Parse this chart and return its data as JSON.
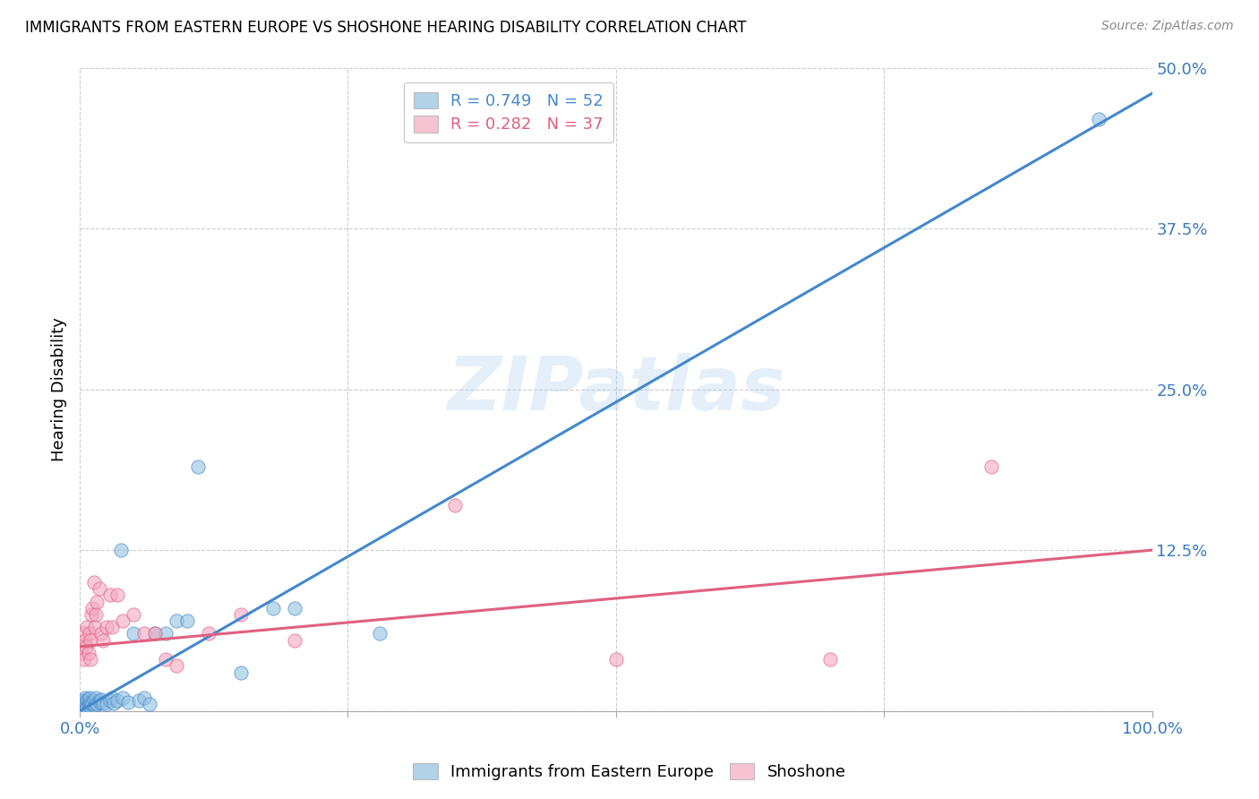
{
  "title": "IMMIGRANTS FROM EASTERN EUROPE VS SHOSHONE HEARING DISABILITY CORRELATION CHART",
  "source": "Source: ZipAtlas.com",
  "ylabel": "Hearing Disability",
  "xlim": [
    0,
    1.0
  ],
  "ylim": [
    0,
    0.5
  ],
  "xtick_positions": [
    0.0,
    0.25,
    0.5,
    0.75,
    1.0
  ],
  "xtick_labels": [
    "0.0%",
    "",
    "",
    "",
    "100.0%"
  ],
  "ytick_positions": [
    0.0,
    0.125,
    0.25,
    0.375,
    0.5
  ],
  "ytick_labels": [
    "",
    "12.5%",
    "25.0%",
    "37.5%",
    "50.0%"
  ],
  "blue_color": "#92c0e0",
  "pink_color": "#f4a8c0",
  "blue_line_color": "#4488cc",
  "pink_line_color": "#e06080",
  "blue_r": 0.749,
  "blue_n": 52,
  "pink_r": 0.282,
  "pink_n": 37,
  "watermark": "ZIPatlas",
  "legend_label_blue": "Immigrants from Eastern Europe",
  "legend_label_pink": "Shoshone",
  "blue_scatter_x": [
    0.001,
    0.002,
    0.002,
    0.003,
    0.003,
    0.004,
    0.004,
    0.005,
    0.005,
    0.006,
    0.006,
    0.007,
    0.007,
    0.008,
    0.008,
    0.009,
    0.009,
    0.01,
    0.01,
    0.011,
    0.012,
    0.013,
    0.014,
    0.015,
    0.015,
    0.016,
    0.018,
    0.019,
    0.02,
    0.022,
    0.025,
    0.028,
    0.03,
    0.032,
    0.035,
    0.038,
    0.04,
    0.045,
    0.05,
    0.055,
    0.06,
    0.065,
    0.07,
    0.08,
    0.09,
    0.1,
    0.11,
    0.15,
    0.18,
    0.2,
    0.28,
    0.95
  ],
  "blue_scatter_y": [
    0.004,
    0.003,
    0.006,
    0.004,
    0.008,
    0.003,
    0.007,
    0.005,
    0.01,
    0.004,
    0.007,
    0.003,
    0.009,
    0.005,
    0.008,
    0.004,
    0.01,
    0.003,
    0.007,
    0.005,
    0.006,
    0.008,
    0.004,
    0.006,
    0.01,
    0.005,
    0.008,
    0.007,
    0.009,
    0.006,
    0.005,
    0.008,
    0.01,
    0.006,
    0.008,
    0.125,
    0.01,
    0.007,
    0.06,
    0.008,
    0.01,
    0.005,
    0.06,
    0.06,
    0.07,
    0.07,
    0.19,
    0.03,
    0.08,
    0.08,
    0.06,
    0.46
  ],
  "pink_scatter_x": [
    0.001,
    0.002,
    0.003,
    0.004,
    0.005,
    0.006,
    0.007,
    0.008,
    0.009,
    0.01,
    0.01,
    0.011,
    0.012,
    0.013,
    0.014,
    0.015,
    0.016,
    0.018,
    0.02,
    0.022,
    0.025,
    0.028,
    0.03,
    0.035,
    0.04,
    0.05,
    0.06,
    0.07,
    0.08,
    0.09,
    0.12,
    0.15,
    0.2,
    0.35,
    0.5,
    0.7,
    0.85
  ],
  "pink_scatter_y": [
    0.05,
    0.045,
    0.06,
    0.04,
    0.055,
    0.05,
    0.065,
    0.045,
    0.06,
    0.055,
    0.04,
    0.075,
    0.08,
    0.1,
    0.065,
    0.075,
    0.085,
    0.095,
    0.06,
    0.055,
    0.065,
    0.09,
    0.065,
    0.09,
    0.07,
    0.075,
    0.06,
    0.06,
    0.04,
    0.035,
    0.06,
    0.075,
    0.055,
    0.16,
    0.04,
    0.04,
    0.19
  ],
  "blue_line_x": [
    0.0,
    1.0
  ],
  "blue_line_y": [
    0.0,
    0.48
  ],
  "pink_line_x": [
    0.0,
    1.0
  ],
  "pink_line_y": [
    0.05,
    0.125
  ],
  "background_color": "#ffffff",
  "grid_color": "#cccccc"
}
